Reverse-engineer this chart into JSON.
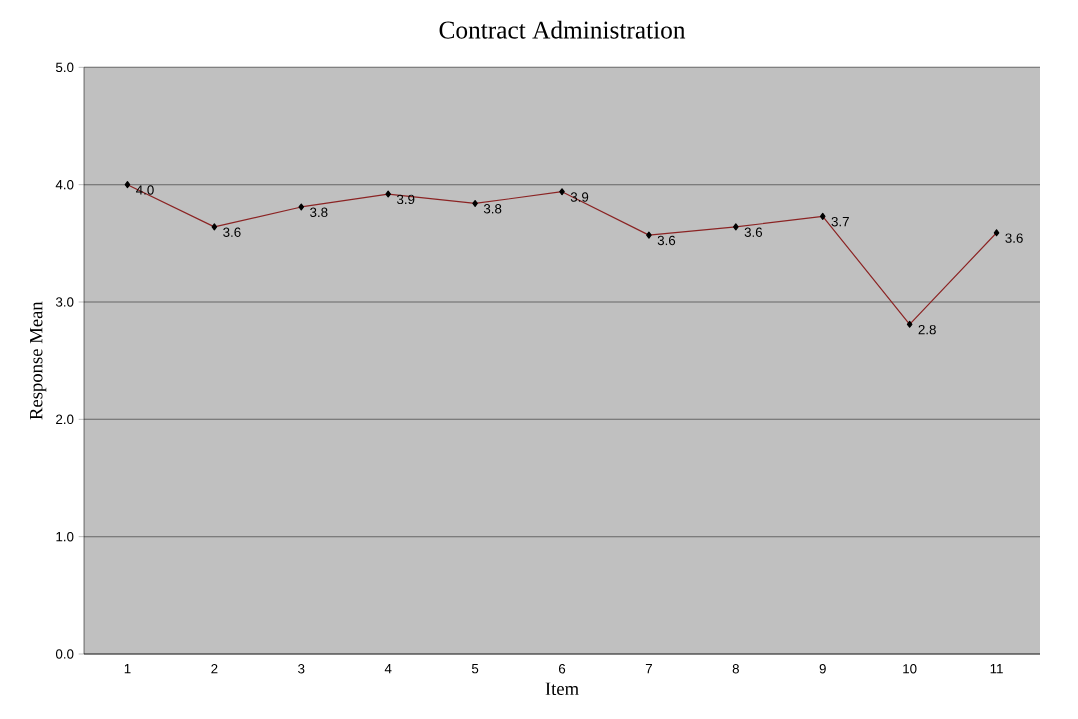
{
  "chart_data": {
    "type": "line",
    "title": "Contract Administration",
    "xlabel": "Item",
    "ylabel": "Response Mean",
    "categories": [
      "1",
      "2",
      "3",
      "4",
      "5",
      "6",
      "7",
      "8",
      "9",
      "10",
      "11"
    ],
    "values": [
      4.0,
      3.64,
      3.81,
      3.92,
      3.84,
      3.94,
      3.57,
      3.64,
      3.73,
      2.81,
      3.59
    ],
    "value_labels": [
      "4.0",
      "3.6",
      "3.8",
      "3.9",
      "3.8",
      "3.9",
      "3.6",
      "3.6",
      "3.7",
      "2.8",
      "3.6"
    ],
    "color": "#8b2323",
    "marker": "diamond",
    "grid": "y",
    "ylim": [
      0,
      5
    ],
    "yticks": [
      {
        "value": 0,
        "label": "0.0"
      },
      {
        "value": 1,
        "label": "1.0"
      },
      {
        "value": 2,
        "label": "2.0"
      },
      {
        "value": 3,
        "label": "3.0"
      },
      {
        "value": 4,
        "label": "4.0"
      },
      {
        "value": 5,
        "label": "5.0"
      }
    ]
  }
}
